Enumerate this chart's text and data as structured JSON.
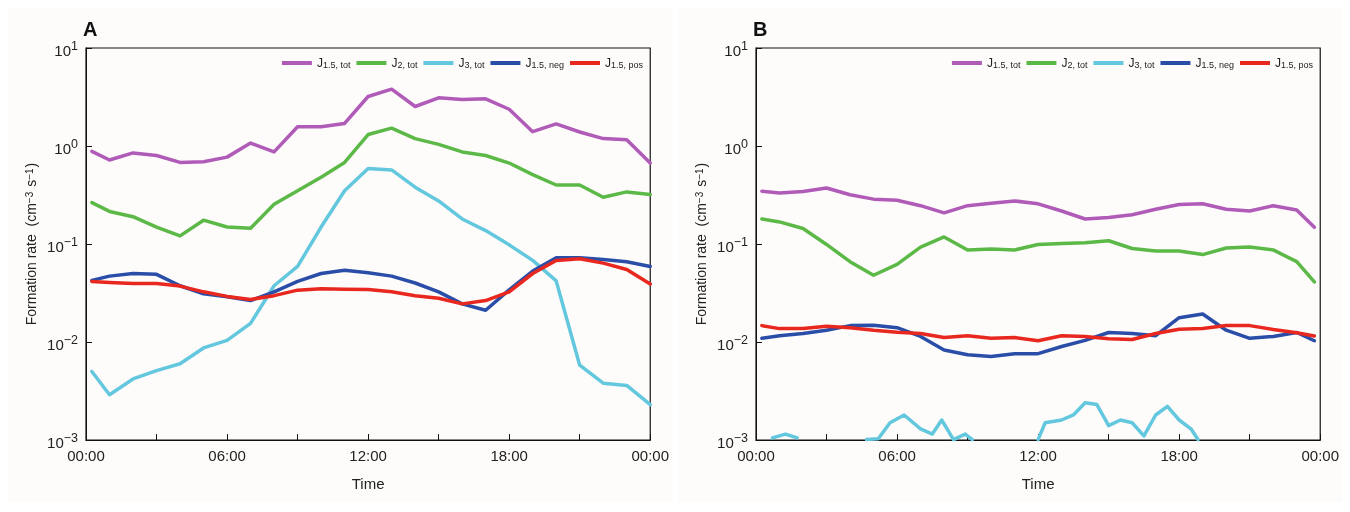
{
  "chart_data": [
    {
      "type": "line",
      "title": "A",
      "xlabel": "Time",
      "ylabel": "Formation rate  (cm$^{−3}$ s$^{−1}$)",
      "log": "y",
      "grid": false,
      "legend": "top right",
      "marker": "none",
      "line_style": "solid",
      "x": [
        0.25,
        1,
        2,
        3,
        4,
        5,
        6,
        7,
        8,
        9,
        10,
        11,
        12,
        13,
        14,
        15,
        16,
        17,
        18,
        19,
        20,
        21,
        22,
        23,
        24
      ],
      "xlim": [
        0,
        24
      ],
      "xticks": [
        {
          "value": 0,
          "label": "00:00"
        },
        {
          "value": 3,
          "label": null
        },
        {
          "value": 6,
          "label": "06:00"
        },
        {
          "value": 9,
          "label": null
        },
        {
          "value": 12,
          "label": "12:00"
        },
        {
          "value": 15,
          "label": null
        },
        {
          "value": 18,
          "label": "18:00"
        },
        {
          "value": 21,
          "label": null
        },
        {
          "value": 24,
          "label": "00:00"
        }
      ],
      "ylim": [
        0.001,
        10
      ],
      "yticks": [
        {
          "value": 0.001,
          "label": "10$^{−3}$"
        },
        {
          "value": 0.01,
          "label": "10$^{−2}$"
        },
        {
          "value": 0.1,
          "label": "10$^{−1}$"
        },
        {
          "value": 1,
          "label": "10$^{0}$"
        },
        {
          "value": 10,
          "label": "10$^{1}$"
        }
      ],
      "series": [
        {
          "name": "J$_{1.5, tot}$",
          "color": "#b05bb8",
          "values": [
            0.88,
            0.72,
            0.85,
            0.8,
            0.68,
            0.69,
            0.77,
            1.07,
            0.87,
            1.57,
            1.57,
            1.7,
            3.2,
            3.8,
            2.53,
            3.1,
            2.98,
            3.03,
            2.37,
            1.4,
            1.68,
            1.39,
            1.19,
            1.16,
            0.67
          ]
        },
        {
          "name": "J$_{2, tot}$",
          "color": "#5cb947",
          "values": [
            0.264,
            0.215,
            0.19,
            0.149,
            0.121,
            0.175,
            0.149,
            0.145,
            0.254,
            0.35,
            0.48,
            0.68,
            1.31,
            1.52,
            1.19,
            1.04,
            0.87,
            0.8,
            0.67,
            0.51,
            0.4,
            0.4,
            0.3,
            0.34,
            0.32
          ]
        },
        {
          "name": "J$_{3, tot}$",
          "color": "#63c7de",
          "values": [
            0.005,
            0.0029,
            0.0042,
            0.0051,
            0.006,
            0.0087,
            0.0104,
            0.0155,
            0.0375,
            0.059,
            0.149,
            0.35,
            0.59,
            0.57,
            0.38,
            0.275,
            0.18,
            0.137,
            0.098,
            0.068,
            0.042,
            0.0058,
            0.0038,
            0.0036,
            0.0023
          ]
        },
        {
          "name": "J$_{1.5, neg}$",
          "color": "#2a4ea8",
          "values": [
            0.0425,
            0.047,
            0.05,
            0.049,
            0.0375,
            0.031,
            0.029,
            0.0265,
            0.0325,
            0.0415,
            0.05,
            0.054,
            0.051,
            0.047,
            0.04,
            0.0325,
            0.0245,
            0.0211,
            0.034,
            0.053,
            0.0725,
            0.0725,
            0.0695,
            0.066,
            0.059
          ]
        },
        {
          "name": "J$_{1.5, pos}$",
          "color": "#e8281f",
          "values": [
            0.0415,
            0.0405,
            0.0395,
            0.0395,
            0.0372,
            0.0325,
            0.0292,
            0.0272,
            0.0297,
            0.0338,
            0.035,
            0.0346,
            0.0343,
            0.0325,
            0.0297,
            0.028,
            0.0245,
            0.0265,
            0.0325,
            0.05,
            0.068,
            0.0707,
            0.0638,
            0.055,
            0.039
          ]
        }
      ]
    },
    {
      "type": "line",
      "title": "B",
      "xlabel": "Time",
      "ylabel": "Formation rate  (cm$^{−3}$ s$^{−1}$)",
      "log": "y",
      "grid": false,
      "legend": "top right",
      "marker": "none",
      "line_style": "solid",
      "x": [
        0.25,
        1,
        2,
        3,
        4,
        5,
        6,
        7,
        8,
        9,
        10,
        11,
        12,
        13,
        14,
        15,
        16,
        17,
        18,
        19,
        20,
        21,
        22,
        23,
        23.75
      ],
      "xlim": [
        0,
        24
      ],
      "xticks": [
        {
          "value": 0,
          "label": "00:00"
        },
        {
          "value": 3,
          "label": null
        },
        {
          "value": 6,
          "label": "06:00"
        },
        {
          "value": 9,
          "label": null
        },
        {
          "value": 12,
          "label": "12:00"
        },
        {
          "value": 15,
          "label": null
        },
        {
          "value": 18,
          "label": "18:00"
        },
        {
          "value": 21,
          "label": null
        },
        {
          "value": 24,
          "label": "00:00"
        }
      ],
      "ylim": [
        0.001,
        10
      ],
      "yticks": [
        {
          "value": 0.001,
          "label": "10$^{−3}$"
        },
        {
          "value": 0.01,
          "label": "10$^{−2}$"
        },
        {
          "value": 0.1,
          "label": "10$^{−1}$"
        },
        {
          "value": 1,
          "label": "10$^{0}$"
        },
        {
          "value": 10,
          "label": "10$^{1}$"
        }
      ],
      "series": [
        {
          "name": "J$_{1.5, tot}$",
          "color": "#b05bb8",
          "values": [
            0.346,
            0.331,
            0.343,
            0.373,
            0.318,
            0.287,
            0.28,
            0.246,
            0.208,
            0.246,
            0.26,
            0.275,
            0.257,
            0.217,
            0.18,
            0.186,
            0.199,
            0.226,
            0.253,
            0.257,
            0.226,
            0.217,
            0.246,
            0.222,
            0.148
          ]
        },
        {
          "name": "J$_{2, tot}$",
          "color": "#5cb947",
          "values": [
            0.18,
            0.168,
            0.144,
            0.099,
            0.066,
            0.048,
            0.062,
            0.093,
            0.118,
            0.087,
            0.089,
            0.087,
            0.099,
            0.101,
            0.103,
            0.108,
            0.09,
            0.085,
            0.085,
            0.078,
            0.091,
            0.093,
            0.087,
            0.066,
            0.041
          ]
        },
        {
          "name": "J$_{3, tot}$",
          "color": "#63c7de",
          "x": [
            0.7,
            1.25,
            1.75,
            3,
            4.7,
            5.2,
            5.7,
            6.3,
            7,
            7.5,
            7.9,
            8.4,
            8.9,
            9.2,
            10.5,
            12,
            12.3,
            13,
            13.5,
            14,
            14.5,
            15,
            15.5,
            16,
            16.5,
            17,
            17.5,
            18,
            18.5,
            18.8
          ],
          "values": [
            0.00105,
            0.00115,
            0.00105,
            null,
            0.00101,
            0.00103,
            0.0015,
            0.0018,
            0.0013,
            0.00115,
            0.0016,
            0.00101,
            0.00115,
            0.00101,
            null,
            0.00101,
            0.0015,
            0.0016,
            0.0018,
            0.0024,
            0.0023,
            0.0014,
            0.0016,
            0.0015,
            0.0011,
            0.0018,
            0.0022,
            0.0016,
            0.0013,
            0.00101
          ]
        },
        {
          "name": "J$_{1.5, neg}$",
          "color": "#2a4ea8",
          "values": [
            0.0109,
            0.0116,
            0.0122,
            0.0132,
            0.0147,
            0.0148,
            0.014,
            0.0114,
            0.0083,
            0.0074,
            0.0071,
            0.0076,
            0.0076,
            0.009,
            0.0104,
            0.0125,
            0.0122,
            0.0116,
            0.0177,
            0.0193,
            0.0132,
            0.0109,
            0.0114,
            0.0125,
            0.0103
          ]
        },
        {
          "name": "J$_{1.5, pos}$",
          "color": "#e8281f",
          "values": [
            0.0147,
            0.0137,
            0.0137,
            0.0145,
            0.014,
            0.0132,
            0.0126,
            0.0122,
            0.0111,
            0.0116,
            0.0109,
            0.0111,
            0.0103,
            0.0116,
            0.0114,
            0.0108,
            0.0106,
            0.0122,
            0.0135,
            0.0137,
            0.0147,
            0.0147,
            0.0134,
            0.0124,
            0.0115
          ]
        }
      ]
    }
  ]
}
